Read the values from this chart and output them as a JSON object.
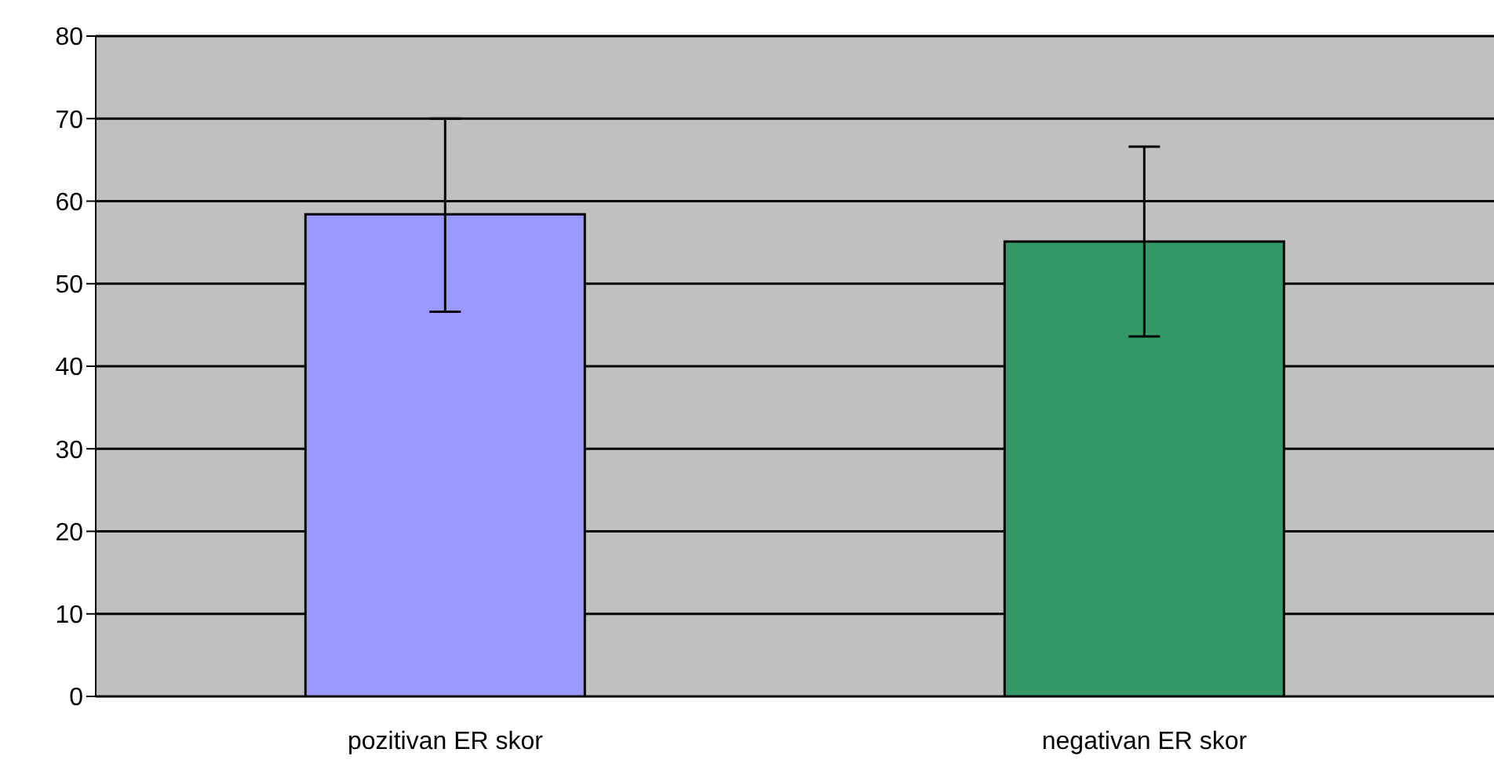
{
  "chart_data": {
    "type": "bar",
    "categories": [
      "pozitivan ER skor",
      "negativan ER skor"
    ],
    "values": [
      58.4,
      55.1
    ],
    "colors": [
      "#9999ff",
      "#339966"
    ],
    "errors": [
      [
        46.6,
        70.0
      ],
      [
        43.6,
        66.6
      ]
    ],
    "ylim": [
      0,
      80
    ],
    "yticks": [
      0,
      10,
      20,
      30,
      40,
      50,
      60,
      70,
      80
    ],
    "grid": "y",
    "legend": false
  }
}
